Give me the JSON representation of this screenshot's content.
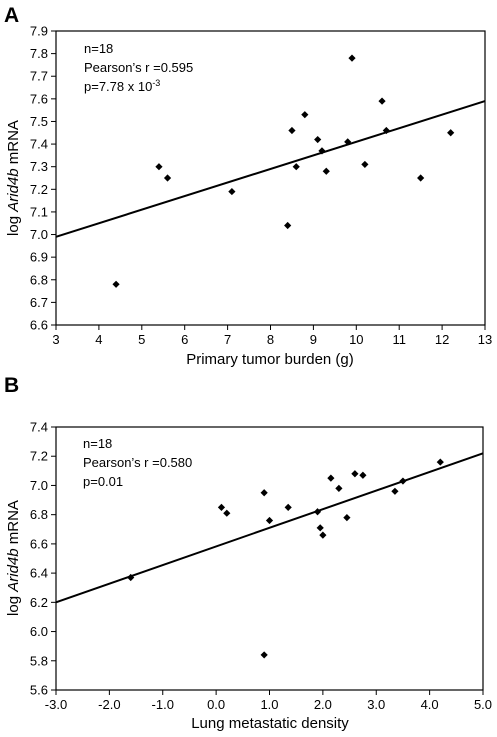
{
  "chart_data": [
    {
      "type": "scatter",
      "panel_label": "A",
      "title": "",
      "xlabel": "Primary tumor burden (g)",
      "ylabel_prefix": "log ",
      "ylabel_italic": "Arid4b",
      "ylabel_suffix": " mRNA",
      "xlim": [
        3,
        13
      ],
      "ylim": [
        6.6,
        7.9
      ],
      "xticks": [
        "3",
        "4",
        "5",
        "6",
        "7",
        "8",
        "9",
        "10",
        "11",
        "12",
        "13"
      ],
      "yticks": [
        "6.6",
        "6.7",
        "6.8",
        "6.9",
        "7.0",
        "7.1",
        "7.2",
        "7.3",
        "7.4",
        "7.5",
        "7.6",
        "7.7",
        "7.8",
        "7.9"
      ],
      "annotations": {
        "n": "n=18",
        "r": "Pearson’s r =0.595",
        "p_base": "p=7.78 x 10",
        "p_exp": "-3"
      },
      "points": [
        {
          "x": 4.4,
          "y": 6.78
        },
        {
          "x": 5.4,
          "y": 7.3
        },
        {
          "x": 5.6,
          "y": 7.25
        },
        {
          "x": 7.1,
          "y": 7.19
        },
        {
          "x": 8.4,
          "y": 7.04
        },
        {
          "x": 8.5,
          "y": 7.46
        },
        {
          "x": 8.6,
          "y": 7.3
        },
        {
          "x": 8.8,
          "y": 7.53
        },
        {
          "x": 9.1,
          "y": 7.42
        },
        {
          "x": 9.2,
          "y": 7.37
        },
        {
          "x": 9.3,
          "y": 7.28
        },
        {
          "x": 9.8,
          "y": 7.41
        },
        {
          "x": 9.9,
          "y": 7.78
        },
        {
          "x": 10.2,
          "y": 7.31
        },
        {
          "x": 10.6,
          "y": 7.59
        },
        {
          "x": 10.7,
          "y": 7.46
        },
        {
          "x": 11.5,
          "y": 7.25
        },
        {
          "x": 12.2,
          "y": 7.45
        }
      ],
      "fit_line": {
        "x": [
          3,
          13
        ],
        "y": [
          6.99,
          7.59
        ]
      }
    },
    {
      "type": "scatter",
      "panel_label": "B",
      "title": "",
      "xlabel": "Lung metastatic density",
      "ylabel_prefix": "log ",
      "ylabel_italic": "Arid4b",
      "ylabel_suffix": " mRNA",
      "xlim": [
        -3.0,
        5.0
      ],
      "ylim": [
        5.6,
        7.4
      ],
      "xticks": [
        "-3.0",
        "-2.0",
        "-1.0",
        "0.0",
        "1.0",
        "2.0",
        "3.0",
        "4.0",
        "5.0"
      ],
      "yticks": [
        "5.6",
        "5.8",
        "6.0",
        "6.2",
        "6.4",
        "6.6",
        "6.8",
        "7.0",
        "7.2",
        "7.4"
      ],
      "annotations": {
        "n": "n=18",
        "r": "Pearson’s r =0.580",
        "p": "p=0.01"
      },
      "points": [
        {
          "x": -1.6,
          "y": 6.37
        },
        {
          "x": 0.1,
          "y": 6.85
        },
        {
          "x": 0.2,
          "y": 6.81
        },
        {
          "x": 0.9,
          "y": 6.95
        },
        {
          "x": 1.0,
          "y": 6.76
        },
        {
          "x": 1.35,
          "y": 6.85
        },
        {
          "x": 0.9,
          "y": 5.84
        },
        {
          "x": 1.9,
          "y": 6.82
        },
        {
          "x": 1.95,
          "y": 6.71
        },
        {
          "x": 2.0,
          "y": 6.66
        },
        {
          "x": 2.15,
          "y": 7.05
        },
        {
          "x": 2.3,
          "y": 6.98
        },
        {
          "x": 2.45,
          "y": 6.78
        },
        {
          "x": 2.6,
          "y": 7.08
        },
        {
          "x": 2.75,
          "y": 7.07
        },
        {
          "x": 3.35,
          "y": 6.96
        },
        {
          "x": 3.5,
          "y": 7.03
        },
        {
          "x": 4.2,
          "y": 7.16
        }
      ],
      "fit_line": {
        "x": [
          -3.0,
          5.0
        ],
        "y": [
          6.2,
          7.22
        ]
      }
    }
  ]
}
